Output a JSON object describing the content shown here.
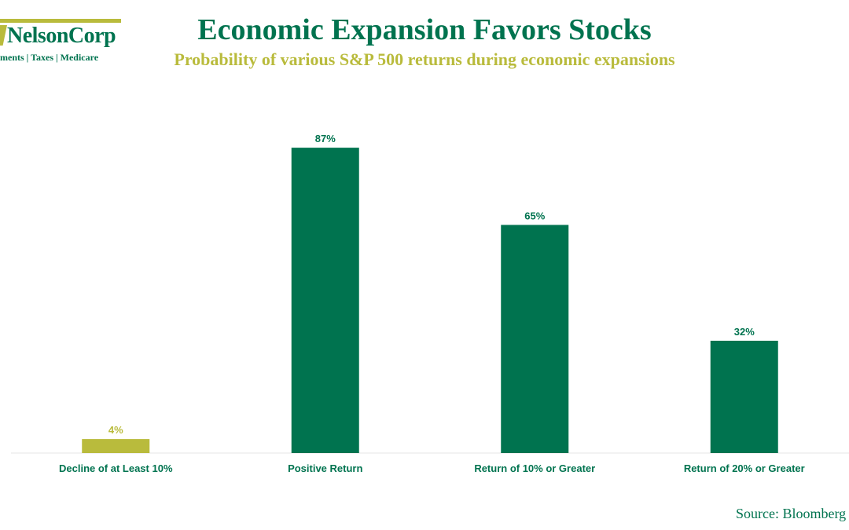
{
  "logo": {
    "name": "NelsonCorp",
    "tagline": "ments | Taxes | Medicare"
  },
  "source": "Source: Bloomberg",
  "colors": {
    "green": "#00734f",
    "olive": "#b9bb3c"
  },
  "chart_data": {
    "type": "bar",
    "title": "Economic Expansion Favors Stocks",
    "subtitle": "Probability of various S&P 500 returns during economic expansions",
    "categories": [
      "Decline of at Least 10%",
      "Positive Return",
      "Return of 10% or Greater",
      "Return of 20% or Greater"
    ],
    "values": [
      4,
      87,
      65,
      32
    ],
    "data_labels": [
      "4%",
      "87%",
      "65%",
      "32%"
    ],
    "bar_colors": [
      "#b9bb3c",
      "#00734f",
      "#00734f",
      "#00734f"
    ],
    "label_colors": [
      "#b9bb3c",
      "#00734f",
      "#00734f",
      "#00734f"
    ],
    "ylim": [
      0,
      100
    ],
    "xlabel": "",
    "ylabel": "",
    "grid": false
  }
}
